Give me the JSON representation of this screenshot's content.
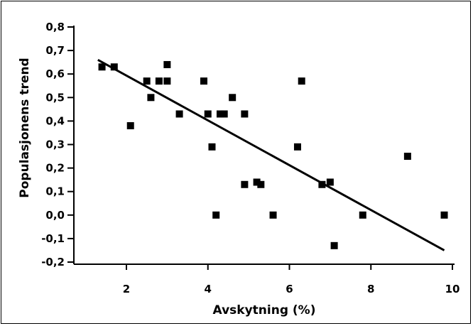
{
  "chart_data": {
    "type": "scatter",
    "title": "",
    "xlabel": "Avskytning (%)",
    "ylabel": "Populasjonens trend",
    "xlim": [
      0.5,
      10
    ],
    "ylim": [
      -0.2,
      0.8
    ],
    "x_ticks": [
      2,
      4,
      6,
      8,
      10
    ],
    "x_tick_labels": [
      "2",
      "4",
      "6",
      "8",
      "10"
    ],
    "y_ticks": [
      -0.2,
      -0.1,
      0.0,
      0.1,
      0.2,
      0.3,
      0.4,
      0.5,
      0.6,
      0.7,
      0.8
    ],
    "y_tick_labels": [
      "-0,2",
      "-0,1",
      "0,0",
      "0,1",
      "0,2",
      "0,3",
      "0,4",
      "0,5",
      "0,6",
      "0,7",
      "0,8"
    ],
    "grid": false,
    "marker": "square",
    "color": "#000000",
    "series": [
      {
        "points": [
          {
            "x": 1.4,
            "y": 0.63
          },
          {
            "x": 1.7,
            "y": 0.63
          },
          {
            "x": 2.1,
            "y": 0.38
          },
          {
            "x": 2.5,
            "y": 0.57
          },
          {
            "x": 2.6,
            "y": 0.5
          },
          {
            "x": 2.8,
            "y": 0.57
          },
          {
            "x": 3.0,
            "y": 0.64
          },
          {
            "x": 3.0,
            "y": 0.57
          },
          {
            "x": 3.3,
            "y": 0.43
          },
          {
            "x": 3.9,
            "y": 0.57
          },
          {
            "x": 4.0,
            "y": 0.43
          },
          {
            "x": 4.1,
            "y": 0.29
          },
          {
            "x": 4.2,
            "y": 0.0
          },
          {
            "x": 4.3,
            "y": 0.43
          },
          {
            "x": 4.4,
            "y": 0.43
          },
          {
            "x": 4.6,
            "y": 0.5
          },
          {
            "x": 4.9,
            "y": 0.43
          },
          {
            "x": 4.9,
            "y": 0.13
          },
          {
            "x": 5.2,
            "y": 0.14
          },
          {
            "x": 5.3,
            "y": 0.13
          },
          {
            "x": 5.6,
            "y": 0.0
          },
          {
            "x": 6.2,
            "y": 0.29
          },
          {
            "x": 6.3,
            "y": 0.57
          },
          {
            "x": 6.8,
            "y": 0.13
          },
          {
            "x": 7.0,
            "y": 0.14
          },
          {
            "x": 7.1,
            "y": -0.13
          },
          {
            "x": 7.8,
            "y": 0.0
          },
          {
            "x": 8.9,
            "y": 0.25
          },
          {
            "x": 9.8,
            "y": 0.0
          }
        ]
      }
    ],
    "trendline": {
      "x": [
        1.3,
        9.8
      ],
      "y": [
        0.66,
        -0.15
      ]
    }
  }
}
